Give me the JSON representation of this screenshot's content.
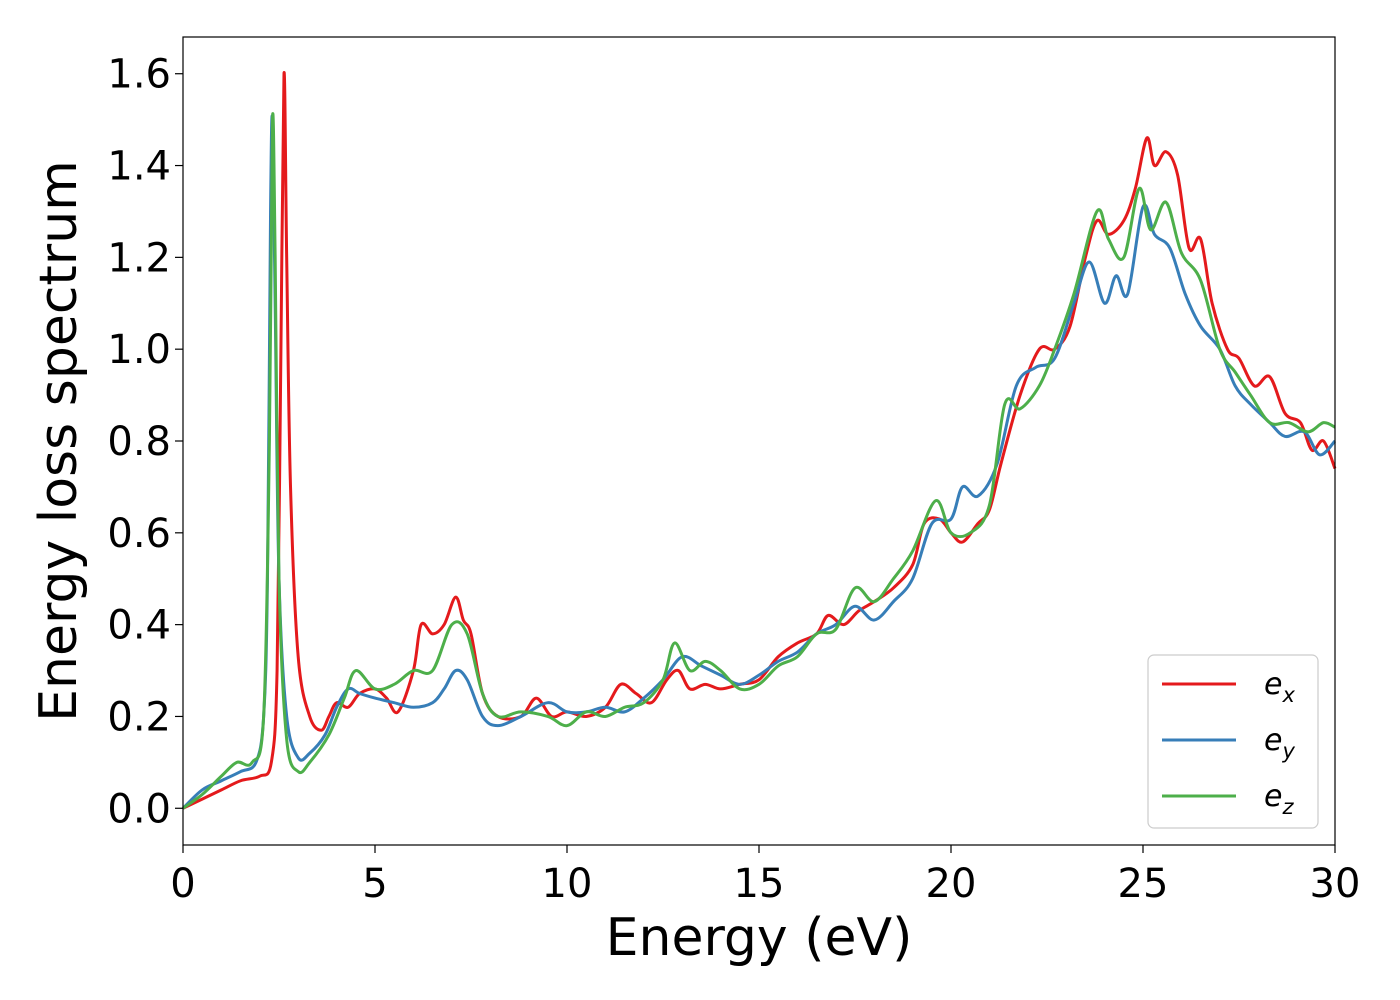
{
  "chart_data": {
    "type": "line",
    "title": "",
    "xlabel": "Energy (eV)",
    "ylabel": "Energy loss spectrum",
    "xlim": [
      0,
      30
    ],
    "ylim": [
      -0.08,
      1.68
    ],
    "xticks": [
      0,
      5,
      10,
      15,
      20,
      25,
      30
    ],
    "xtick_labels": [
      "0",
      "5",
      "10",
      "15",
      "20",
      "25",
      "30"
    ],
    "yticks": [
      0.0,
      0.2,
      0.4,
      0.6,
      0.8,
      1.0,
      1.2,
      1.4,
      1.6
    ],
    "ytick_labels": [
      "0.0",
      "0.2",
      "0.4",
      "0.6",
      "0.8",
      "1.0",
      "1.2",
      "1.4",
      "1.6"
    ],
    "grid": false,
    "legend_position": "bottom-right",
    "series": [
      {
        "name": "e_x",
        "label_base": "e",
        "label_sub": "x",
        "color": "#e41a1c",
        "points": [
          [
            0,
            0
          ],
          [
            0.5,
            0.02
          ],
          [
            1,
            0.04
          ],
          [
            1.5,
            0.06
          ],
          [
            2,
            0.07
          ],
          [
            2.3,
            0.1
          ],
          [
            2.45,
            0.3
          ],
          [
            2.55,
            1.0
          ],
          [
            2.63,
            1.6
          ],
          [
            2.7,
            1.2
          ],
          [
            2.8,
            0.7
          ],
          [
            3,
            0.33
          ],
          [
            3.3,
            0.2
          ],
          [
            3.6,
            0.17
          ],
          [
            3.8,
            0.2
          ],
          [
            4,
            0.23
          ],
          [
            4.3,
            0.22
          ],
          [
            4.6,
            0.25
          ],
          [
            5,
            0.26
          ],
          [
            5.3,
            0.24
          ],
          [
            5.6,
            0.21
          ],
          [
            6,
            0.3
          ],
          [
            6.2,
            0.4
          ],
          [
            6.5,
            0.38
          ],
          [
            6.8,
            0.4
          ],
          [
            7.1,
            0.46
          ],
          [
            7.3,
            0.41
          ],
          [
            7.5,
            0.38
          ],
          [
            7.8,
            0.25
          ],
          [
            8.2,
            0.2
          ],
          [
            8.8,
            0.2
          ],
          [
            9.2,
            0.24
          ],
          [
            9.6,
            0.2
          ],
          [
            10,
            0.21
          ],
          [
            10.5,
            0.2
          ],
          [
            11,
            0.22
          ],
          [
            11.4,
            0.27
          ],
          [
            11.8,
            0.25
          ],
          [
            12.2,
            0.23
          ],
          [
            12.6,
            0.28
          ],
          [
            12.9,
            0.3
          ],
          [
            13.2,
            0.26
          ],
          [
            13.6,
            0.27
          ],
          [
            14,
            0.26
          ],
          [
            14.5,
            0.27
          ],
          [
            15,
            0.28
          ],
          [
            15.5,
            0.33
          ],
          [
            16,
            0.36
          ],
          [
            16.5,
            0.38
          ],
          [
            16.8,
            0.42
          ],
          [
            17.2,
            0.4
          ],
          [
            17.6,
            0.43
          ],
          [
            18,
            0.45
          ],
          [
            18.5,
            0.48
          ],
          [
            19,
            0.53
          ],
          [
            19.3,
            0.62
          ],
          [
            19.7,
            0.63
          ],
          [
            20,
            0.6
          ],
          [
            20.3,
            0.58
          ],
          [
            20.7,
            0.62
          ],
          [
            21,
            0.65
          ],
          [
            21.3,
            0.75
          ],
          [
            21.8,
            0.9
          ],
          [
            22.3,
            1.0
          ],
          [
            22.7,
            1.0
          ],
          [
            23.1,
            1.05
          ],
          [
            23.5,
            1.2
          ],
          [
            23.8,
            1.28
          ],
          [
            24.1,
            1.25
          ],
          [
            24.5,
            1.28
          ],
          [
            24.8,
            1.35
          ],
          [
            25.1,
            1.46
          ],
          [
            25.3,
            1.4
          ],
          [
            25.6,
            1.43
          ],
          [
            25.9,
            1.38
          ],
          [
            26.2,
            1.22
          ],
          [
            26.5,
            1.24
          ],
          [
            26.8,
            1.1
          ],
          [
            27.2,
            1.0
          ],
          [
            27.5,
            0.98
          ],
          [
            27.9,
            0.92
          ],
          [
            28.3,
            0.94
          ],
          [
            28.7,
            0.86
          ],
          [
            29.1,
            0.84
          ],
          [
            29.4,
            0.78
          ],
          [
            29.7,
            0.8
          ],
          [
            30,
            0.74
          ]
        ]
      },
      {
        "name": "e_y",
        "label_base": "e",
        "label_sub": "y",
        "color": "#377eb8",
        "points": [
          [
            0,
            0
          ],
          [
            0.5,
            0.04
          ],
          [
            1,
            0.06
          ],
          [
            1.5,
            0.08
          ],
          [
            1.9,
            0.1
          ],
          [
            2.1,
            0.2
          ],
          [
            2.2,
            0.5
          ],
          [
            2.28,
            1.3
          ],
          [
            2.33,
            1.5
          ],
          [
            2.4,
            1.1
          ],
          [
            2.5,
            0.5
          ],
          [
            2.7,
            0.2
          ],
          [
            3,
            0.11
          ],
          [
            3.3,
            0.12
          ],
          [
            3.7,
            0.16
          ],
          [
            4,
            0.22
          ],
          [
            4.3,
            0.26
          ],
          [
            4.6,
            0.25
          ],
          [
            5,
            0.24
          ],
          [
            5.5,
            0.23
          ],
          [
            6,
            0.22
          ],
          [
            6.5,
            0.23
          ],
          [
            6.8,
            0.26
          ],
          [
            7.1,
            0.3
          ],
          [
            7.4,
            0.28
          ],
          [
            7.8,
            0.2
          ],
          [
            8.2,
            0.18
          ],
          [
            8.8,
            0.2
          ],
          [
            9.5,
            0.23
          ],
          [
            10,
            0.21
          ],
          [
            10.5,
            0.21
          ],
          [
            11,
            0.22
          ],
          [
            11.5,
            0.21
          ],
          [
            12,
            0.24
          ],
          [
            12.5,
            0.28
          ],
          [
            13,
            0.33
          ],
          [
            13.5,
            0.31
          ],
          [
            14,
            0.29
          ],
          [
            14.5,
            0.27
          ],
          [
            15,
            0.29
          ],
          [
            15.5,
            0.32
          ],
          [
            16,
            0.34
          ],
          [
            16.5,
            0.38
          ],
          [
            17,
            0.4
          ],
          [
            17.5,
            0.44
          ],
          [
            18,
            0.41
          ],
          [
            18.5,
            0.45
          ],
          [
            19,
            0.5
          ],
          [
            19.5,
            0.62
          ],
          [
            20,
            0.63
          ],
          [
            20.3,
            0.7
          ],
          [
            20.7,
            0.68
          ],
          [
            21.2,
            0.75
          ],
          [
            21.7,
            0.92
          ],
          [
            22.2,
            0.96
          ],
          [
            22.7,
            0.98
          ],
          [
            23.2,
            1.1
          ],
          [
            23.6,
            1.19
          ],
          [
            24,
            1.1
          ],
          [
            24.3,
            1.16
          ],
          [
            24.6,
            1.12
          ],
          [
            25,
            1.31
          ],
          [
            25.3,
            1.25
          ],
          [
            25.7,
            1.22
          ],
          [
            26.1,
            1.12
          ],
          [
            26.5,
            1.05
          ],
          [
            27,
            1.0
          ],
          [
            27.4,
            0.92
          ],
          [
            27.8,
            0.88
          ],
          [
            28.3,
            0.84
          ],
          [
            28.7,
            0.81
          ],
          [
            29.2,
            0.82
          ],
          [
            29.6,
            0.77
          ],
          [
            30,
            0.8
          ]
        ]
      },
      {
        "name": "e_z",
        "label_base": "e",
        "label_sub": "z",
        "color": "#4daf4a",
        "points": [
          [
            0,
            0
          ],
          [
            0.5,
            0.03
          ],
          [
            1,
            0.07
          ],
          [
            1.4,
            0.1
          ],
          [
            1.8,
            0.1
          ],
          [
            2.1,
            0.2
          ],
          [
            2.25,
            0.8
          ],
          [
            2.33,
            1.5
          ],
          [
            2.4,
            1.2
          ],
          [
            2.5,
            0.5
          ],
          [
            2.7,
            0.15
          ],
          [
            3,
            0.08
          ],
          [
            3.3,
            0.1
          ],
          [
            3.8,
            0.16
          ],
          [
            4.2,
            0.24
          ],
          [
            4.5,
            0.3
          ],
          [
            5,
            0.26
          ],
          [
            5.5,
            0.27
          ],
          [
            6,
            0.3
          ],
          [
            6.5,
            0.3
          ],
          [
            7,
            0.4
          ],
          [
            7.4,
            0.38
          ],
          [
            7.8,
            0.25
          ],
          [
            8.2,
            0.2
          ],
          [
            8.8,
            0.21
          ],
          [
            9.5,
            0.2
          ],
          [
            10,
            0.18
          ],
          [
            10.5,
            0.21
          ],
          [
            11,
            0.2
          ],
          [
            11.5,
            0.22
          ],
          [
            12,
            0.23
          ],
          [
            12.5,
            0.28
          ],
          [
            12.8,
            0.36
          ],
          [
            13.2,
            0.3
          ],
          [
            13.6,
            0.32
          ],
          [
            14,
            0.3
          ],
          [
            14.5,
            0.26
          ],
          [
            15,
            0.27
          ],
          [
            15.5,
            0.31
          ],
          [
            16,
            0.33
          ],
          [
            16.5,
            0.38
          ],
          [
            17,
            0.39
          ],
          [
            17.5,
            0.48
          ],
          [
            18,
            0.45
          ],
          [
            18.5,
            0.5
          ],
          [
            19,
            0.56
          ],
          [
            19.6,
            0.67
          ],
          [
            20,
            0.6
          ],
          [
            20.5,
            0.6
          ],
          [
            21,
            0.66
          ],
          [
            21.4,
            0.88
          ],
          [
            21.8,
            0.87
          ],
          [
            22.3,
            0.92
          ],
          [
            22.7,
            1.0
          ],
          [
            23.2,
            1.12
          ],
          [
            23.8,
            1.3
          ],
          [
            24.1,
            1.24
          ],
          [
            24.5,
            1.2
          ],
          [
            24.9,
            1.35
          ],
          [
            25.2,
            1.26
          ],
          [
            25.6,
            1.32
          ],
          [
            26,
            1.21
          ],
          [
            26.5,
            1.15
          ],
          [
            27,
            1.0
          ],
          [
            27.4,
            0.95
          ],
          [
            27.8,
            0.9
          ],
          [
            28.3,
            0.84
          ],
          [
            28.8,
            0.84
          ],
          [
            29.3,
            0.82
          ],
          [
            29.7,
            0.84
          ],
          [
            30,
            0.83
          ]
        ]
      }
    ]
  }
}
